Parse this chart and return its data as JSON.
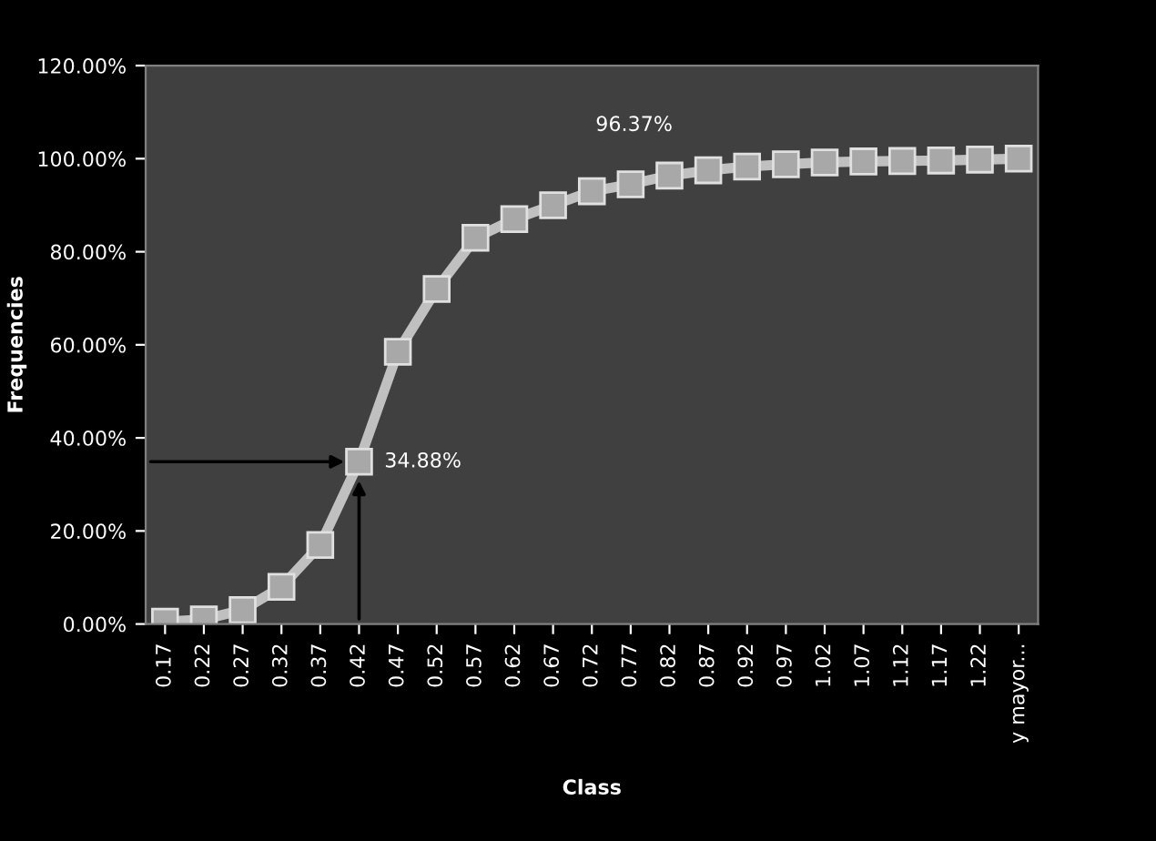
{
  "chart_data": {
    "type": "line",
    "xlabel": "Class",
    "ylabel": "Frequencies",
    "categories": [
      "0.17",
      "0.22",
      "0.27",
      "0.32",
      "0.37",
      "0.42",
      "0.47",
      "0.52",
      "0.57",
      "0.62",
      "0.67",
      "0.72",
      "0.77",
      "0.82",
      "0.87",
      "0.92",
      "0.97",
      "1.02",
      "1.07",
      "1.12",
      "1.17",
      "1.22",
      "y mayor..."
    ],
    "series": [
      {
        "color": "#c0c0c0",
        "values": [
          0.5,
          1,
          3,
          8,
          17,
          34.88,
          58.5,
          72,
          83,
          87,
          90,
          93,
          94.5,
          96.37,
          97.5,
          98.3,
          98.8,
          99.2,
          99.4,
          99.5,
          99.6,
          99.8,
          100
        ]
      }
    ],
    "annotations": [
      {
        "text": "34.88%",
        "x": "0.42",
        "y": 34.88
      },
      {
        "text": "96.37%",
        "x": "0.82",
        "y": 96.37
      }
    ],
    "ylim": [
      0,
      120
    ],
    "yticks": [
      {
        "value": 0,
        "label": "0.00%"
      },
      {
        "value": 20,
        "label": "20.00%"
      },
      {
        "value": 40,
        "label": "40.00%"
      },
      {
        "value": 60,
        "label": "60.00%"
      },
      {
        "value": 80,
        "label": "80.00%"
      },
      {
        "value": 100,
        "label": "100.00%"
      },
      {
        "value": 120,
        "label": "120.00%"
      }
    ],
    "marker": "square",
    "grid": false,
    "legend": false
  }
}
